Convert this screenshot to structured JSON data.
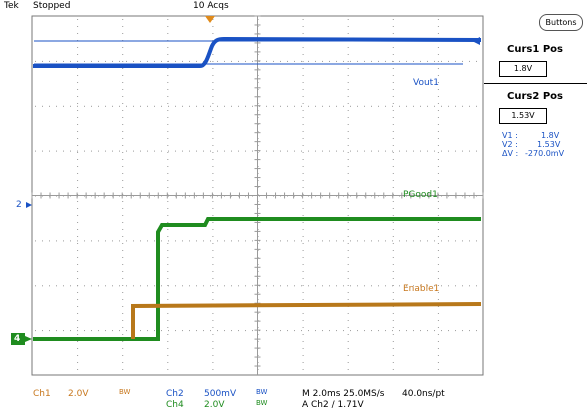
{
  "top_bar": {
    "brand": "Tek",
    "run_state": "Stopped",
    "acq_count": "10 Acqs"
  },
  "side_panel": {
    "buttons_label": "Buttons",
    "curs1_title": "Curs1 Pos",
    "curs1_value": "1.8V",
    "curs2_title": "Curs2 Pos",
    "curs2_value": "1.53V",
    "readout": {
      "v1_label": "V1 :",
      "v1_value": "1.8V",
      "v2_label": "V2 :",
      "v2_value": "1.53V",
      "dv_label": "ΔV :",
      "dv_value": "-270.0mV"
    }
  },
  "trace_labels": {
    "vout": "Vout1",
    "pgood": "PGood1",
    "enable": "Enable1"
  },
  "markers": {
    "ch2": "2",
    "ch4": "4"
  },
  "bottom_bar": {
    "ch1_name": "Ch1",
    "ch1_scale": "2.0V",
    "ch1_bw": "BW",
    "ch2_name": "Ch2",
    "ch2_scale": "500mV",
    "ch2_bw": "BW",
    "ch4_name": "Ch4",
    "ch4_scale": "2.0V",
    "ch4_bw": "BW",
    "timebase": "M 2.0ms 25.0MS/s",
    "record": "40.0ns/pt",
    "trigger": "A  Ch2  ∕  1.71V"
  },
  "colors": {
    "vout": "#1a52c4",
    "pgood": "#1f8c1f",
    "enable": "#b8781a",
    "label_orange": "#c8781e",
    "grid": "#9a9a9a"
  }
}
